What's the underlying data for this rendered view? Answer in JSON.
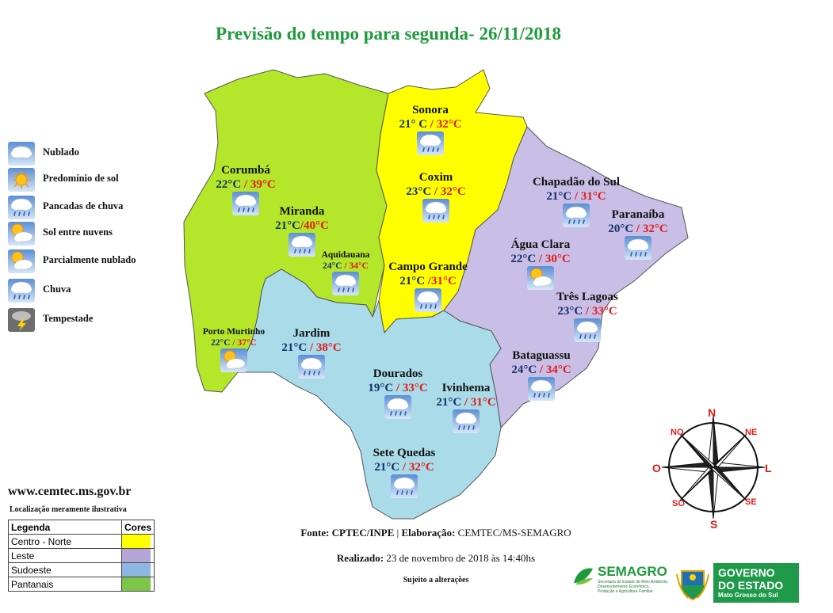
{
  "title": "Previsão do tempo para segunda- 26/11/2018",
  "colors": {
    "centro_norte": "#ffff00",
    "leste": "#c8bee6",
    "sudoeste": "#a9dbe8",
    "pantanais": "#b4e629",
    "title_green": "#1e9a3c",
    "max_temp": "#e51919"
  },
  "icons_legend": [
    {
      "icon": "cloudy-icon",
      "label": "Nublado"
    },
    {
      "icon": "sunny-icon",
      "label": "Predomínio de sol"
    },
    {
      "icon": "showers-icon",
      "label": "Pancadas de chuva"
    },
    {
      "icon": "sun-between-clouds-icon",
      "label": "Sol entre nuvens"
    },
    {
      "icon": "partly-cloudy-icon",
      "label": "Parcialmente nublado"
    },
    {
      "icon": "rain-icon",
      "label": "Chuva"
    },
    {
      "icon": "storm-icon",
      "label": "Tempestade"
    }
  ],
  "cities": [
    {
      "name": "Sonora",
      "min": "21° C",
      "max": " / 32°C",
      "icon": "showers-icon"
    },
    {
      "name": "Corumbá",
      "min": "22°C",
      "max": " / 39°C",
      "icon": "showers-icon"
    },
    {
      "name": "Coxim",
      "min": "23°C",
      "max": " / 32°C",
      "icon": "showers-icon"
    },
    {
      "name": "Chapadão do Sul",
      "min": "21°C",
      "max": " / 31°C",
      "icon": "showers-icon"
    },
    {
      "name": "Miranda",
      "min": "21°C",
      "max": "/40°C",
      "icon": "showers-icon"
    },
    {
      "name": "Paranaíba",
      "min": "20°C",
      "max": " / 32°C",
      "icon": "showers-icon"
    },
    {
      "name": "Aquidauana",
      "min": "24°C",
      "max": " / 34°C",
      "icon": "showers-icon"
    },
    {
      "name": "Água Clara",
      "min": "22°C",
      "max": " / 30°C",
      "icon": "partly-cloudy-icon"
    },
    {
      "name": "Campo Grande",
      "min": "21°C",
      "max": " /31°C",
      "icon": "showers-icon"
    },
    {
      "name": "Três Lagoas",
      "min": "23°C",
      "max": " / 33°C",
      "icon": "showers-icon"
    },
    {
      "name": "Porto Murtinho",
      "min": "22°C",
      "max": " / 37°C",
      "icon": "partly-cloudy-icon"
    },
    {
      "name": "Jardim",
      "min": "21°C",
      "max": " / 38°C",
      "icon": "showers-icon"
    },
    {
      "name": "Bataguassu",
      "min": "24°C",
      "max": " / 34°C",
      "icon": "showers-icon"
    },
    {
      "name": "Dourados",
      "min": "19°C",
      "max": " / 33°C",
      "icon": "showers-icon"
    },
    {
      "name": "Ivinhema",
      "min": "21°C",
      "max": " / 31°C",
      "icon": "showers-icon"
    },
    {
      "name": "Sete Quedas",
      "min": "21°C",
      "max": " / 32°C",
      "icon": "showers-icon"
    }
  ],
  "website": "www.cemtec.ms.gov.br",
  "disclaimer": "Localização meramente ilustrativa",
  "color_legend": {
    "header_region": "Legenda",
    "header_color": "Cores",
    "rows": [
      {
        "region": "Centro - Norte",
        "color": "#ffff00"
      },
      {
        "region": "Leste",
        "color": "#b5a6d6"
      },
      {
        "region": "Sudoeste",
        "color": "#8db6e3"
      },
      {
        "region": "Pantanais",
        "color": "#7dc549"
      }
    ]
  },
  "footer": {
    "source_label": "Fonte: CPTEC/INPE",
    "separator": " | ",
    "elab_label": "Elaboração:",
    "elab_value": " CEMTEC/MS-SEMAGRO",
    "made_label": "Realizado:",
    "made_value": " 23 de novembro de 2018 às  14:40hs",
    "subject": "Sujeito a alterações"
  },
  "compass": {
    "n": "N",
    "ne": "NE",
    "l": "L",
    "se": "SE",
    "s": "S",
    "so": "SO",
    "o": "O",
    "no": "NO"
  },
  "logos": {
    "semagro": "SEMAGRO",
    "semagro_sub": [
      "Secretaria de Estado de Meio Ambiente,",
      "Desenvolvimento Econômico,",
      "Produção e Agricultura Familiar"
    ],
    "gov_line1": "GOVERNO",
    "gov_line2": "DO ESTADO",
    "gov_line3": "Mato Grosso do Sul"
  }
}
